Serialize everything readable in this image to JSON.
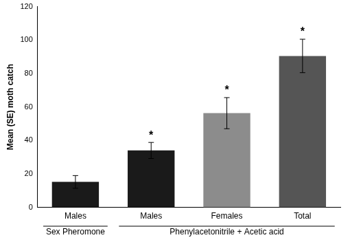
{
  "chart_data": {
    "type": "bar",
    "y_label": "Mean (SE) moth catch",
    "categories": [
      "Males",
      "Males",
      "Females",
      "Total"
    ],
    "groups": [
      {
        "name": "Sex Pheromone",
        "size": 1
      },
      {
        "name": "Phenylacetonitrile + Acetic acid",
        "size": 3
      }
    ],
    "values": [
      15.2,
      34,
      56.3,
      90.5
    ],
    "errors": [
      3.8,
      4.8,
      9.3,
      10
    ],
    "annotations": [
      {
        "index": 1,
        "text": "*"
      },
      {
        "index": 2,
        "text": "*"
      },
      {
        "index": 3,
        "text": "*"
      }
    ],
    "colors": [
      "#1a1a1a",
      "#1a1a1a",
      "#8c8c8c",
      "#555555"
    ],
    "ylim": [
      0,
      120
    ],
    "yticks": [
      0,
      20,
      40,
      60,
      80,
      100,
      120
    ],
    "grid": false
  }
}
